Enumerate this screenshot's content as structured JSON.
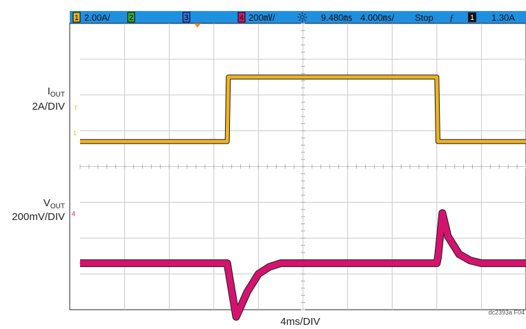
{
  "status_bar": {
    "ch1_badge": "1",
    "ch1_scale": "2.00A/",
    "ch2_badge": "2",
    "ch3_badge": "3",
    "ch4_badge": "4",
    "ch4_scale": "200㎷/",
    "acq_icon": "acquire-spark-icon",
    "trig_delay": "9.480㎳",
    "timebase": "4.000㎳/",
    "run_state": "Stop",
    "trig_edge": "ƒ",
    "trig_src_badge": "1",
    "trig_level": "1.30A"
  },
  "labels": {
    "iout_main": "I",
    "iout_sub": "OUT",
    "iout_scale": "2A/DIV",
    "vout_main": "V",
    "vout_sub": "OUT",
    "vout_scale": "200mV/DIV",
    "xaxis": "4ms/DIV",
    "credit": "dc2393a F04"
  },
  "colors": {
    "background": "#ffffff",
    "grid": "#c8c8c8",
    "status_bar": "#1f8fe0",
    "ch1": "#f0b21e",
    "ch4": "#d4136f",
    "trace_edge": "#1a1a1a"
  },
  "chart_data": {
    "type": "line",
    "xlabel": "4ms/DIV",
    "grid": true,
    "x_divisions": 10,
    "y_divisions": 8,
    "x_range_ms": [
      0,
      40
    ],
    "series": [
      {
        "name": "IOUT",
        "unit": "A",
        "scale": "2A/DIV",
        "color": "#f0b21e",
        "x": [
          0,
          13.2,
          13.3,
          32.0,
          32.1,
          40
        ],
        "values": [
          0.4,
          0.4,
          4.0,
          4.0,
          0.4,
          0.4
        ]
      },
      {
        "name": "VOUT",
        "unit": "mV",
        "scale": "200mV/DIV",
        "color": "#d4136f",
        "x": [
          0,
          13.2,
          13.3,
          14.0,
          15.0,
          16.0,
          17.0,
          18.0,
          32.0,
          32.1,
          32.5,
          33.0,
          34.0,
          35.0,
          36.0,
          40
        ],
        "values": [
          0,
          0,
          -40,
          -300,
          -160,
          -60,
          -20,
          0,
          0,
          30,
          280,
          150,
          50,
          15,
          0,
          0
        ]
      }
    ]
  }
}
